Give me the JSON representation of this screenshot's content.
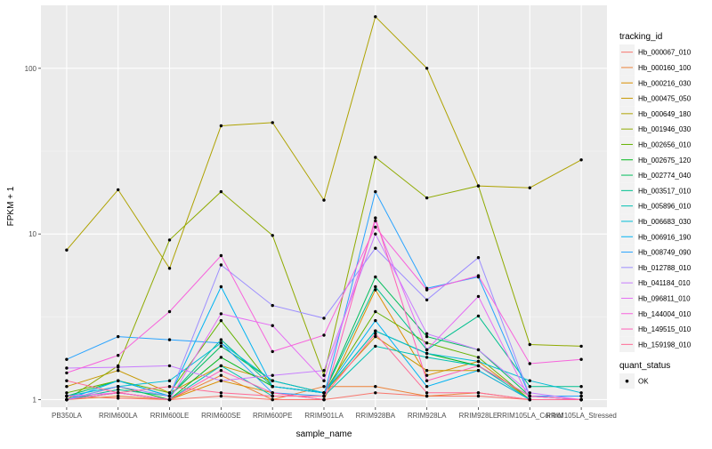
{
  "chart_data": {
    "type": "line",
    "xlabel": "sample_name",
    "ylabel": "FPKM + 1",
    "y_scale": "log10",
    "ylim": [
      0.9,
      240
    ],
    "grid": true,
    "legend_position": "right",
    "x_categories": [
      "PB350LA",
      "RRIM600LA",
      "RRIM600LE",
      "RRIM600SE",
      "RRIM600PE",
      "RRIM901LA",
      "RRIM928BA",
      "RRIM928LA",
      "RRIM928LE",
      "RRIM105LA_Control",
      "RRIM105LA_Stressed"
    ],
    "y_ticks": [
      {
        "value": 1,
        "label": "1"
      },
      {
        "value": 10,
        "label": "10"
      },
      {
        "value": 100,
        "label": "100"
      }
    ],
    "series": [
      {
        "name": "Hb_000067_010",
        "color": "#F8766D",
        "values": [
          1.05,
          1.02,
          1.0,
          1.05,
          1.0,
          1.0,
          1.1,
          1.05,
          1.05,
          1.0,
          1.0
        ]
      },
      {
        "name": "Hb_000160_100",
        "color": "#EC8239",
        "values": [
          1.0,
          1.05,
          1.0,
          1.4,
          1.0,
          1.2,
          1.2,
          1.05,
          1.1,
          1.0,
          1.0
        ]
      },
      {
        "name": "Hb_000216_030",
        "color": "#DB8E00",
        "values": [
          1.0,
          1.1,
          1.0,
          1.3,
          1.1,
          1.0,
          4.6,
          1.4,
          1.7,
          1.0,
          1.0
        ]
      },
      {
        "name": "Hb_000475_050",
        "color": "#C79800",
        "values": [
          1.2,
          1.5,
          1.1,
          1.6,
          1.3,
          1.1,
          2.4,
          1.5,
          1.5,
          1.0,
          1.0
        ]
      },
      {
        "name": "Hb_000649_180",
        "color": "#AEA200",
        "values": [
          8.0,
          18.5,
          6.2,
          45.0,
          47.0,
          16.0,
          205.0,
          100.0,
          19.5,
          19.0,
          28.0
        ]
      },
      {
        "name": "Hb_001946_030",
        "color": "#8FAA00",
        "values": [
          1.0,
          1.6,
          9.2,
          18.0,
          9.8,
          1.4,
          29.0,
          16.5,
          19.5,
          2.15,
          2.1
        ]
      },
      {
        "name": "Hb_002656_010",
        "color": "#64B200",
        "values": [
          1.1,
          1.3,
          1.1,
          3.0,
          1.2,
          1.1,
          3.4,
          2.2,
          1.8,
          1.0,
          1.0
        ]
      },
      {
        "name": "Hb_002675_120",
        "color": "#00B81B",
        "values": [
          1.0,
          1.2,
          1.0,
          1.8,
          1.2,
          1.1,
          2.6,
          1.9,
          1.6,
          1.05,
          1.0
        ]
      },
      {
        "name": "Hb_002774_040",
        "color": "#00BD5C",
        "values": [
          1.05,
          1.3,
          1.05,
          2.1,
          1.3,
          1.1,
          5.5,
          2.4,
          2.0,
          1.05,
          1.05
        ]
      },
      {
        "name": "Hb_003517_010",
        "color": "#00C08E",
        "values": [
          1.0,
          1.15,
          1.05,
          2.3,
          1.2,
          1.1,
          4.8,
          2.0,
          3.2,
          1.2,
          1.2
        ]
      },
      {
        "name": "Hb_005896_010",
        "color": "#00C1B2",
        "values": [
          1.0,
          1.1,
          1.0,
          1.6,
          1.05,
          1.05,
          2.1,
          1.8,
          1.6,
          1.0,
          1.0
        ]
      },
      {
        "name": "Hb_006683_030",
        "color": "#00BCD6",
        "values": [
          1.05,
          1.2,
          1.3,
          2.2,
          1.3,
          1.1,
          2.6,
          1.9,
          1.7,
          1.3,
          1.1
        ]
      },
      {
        "name": "Hb_006916_190",
        "color": "#00B3F2",
        "values": [
          1.0,
          1.3,
          1.05,
          4.8,
          1.2,
          1.1,
          3.0,
          1.2,
          1.5,
          1.0,
          1.0
        ]
      },
      {
        "name": "Hb_008749_090",
        "color": "#29A3FF",
        "values": [
          1.75,
          2.4,
          2.3,
          2.2,
          1.1,
          1.05,
          18.0,
          4.7,
          5.5,
          1.05,
          1.05
        ]
      },
      {
        "name": "Hb_012788_010",
        "color": "#9C8DFF",
        "values": [
          1.0,
          1.2,
          1.05,
          6.5,
          3.7,
          3.1,
          8.2,
          4.0,
          7.2,
          1.05,
          1.0
        ]
      },
      {
        "name": "Hb_041184_010",
        "color": "#C77CFF",
        "values": [
          1.55,
          1.57,
          1.6,
          1.3,
          1.4,
          1.5,
          10.0,
          2.5,
          2.0,
          1.1,
          1.0
        ]
      },
      {
        "name": "Hb_096811_010",
        "color": "#E56EF4",
        "values": [
          1.05,
          1.1,
          1.0,
          3.3,
          2.8,
          1.3,
          12.0,
          2.0,
          4.2,
          1.0,
          1.0
        ]
      },
      {
        "name": "Hb_144004_010",
        "color": "#F763DC",
        "values": [
          1.45,
          1.85,
          3.4,
          7.4,
          1.95,
          2.45,
          11.0,
          4.6,
          5.6,
          1.65,
          1.75
        ]
      },
      {
        "name": "Hb_149515_010",
        "color": "#FF5FB8",
        "values": [
          1.0,
          1.1,
          1.0,
          1.5,
          1.1,
          1.0,
          12.5,
          1.3,
          1.6,
          1.05,
          1.0
        ]
      },
      {
        "name": "Hb_159198_010",
        "color": "#FF6A95",
        "values": [
          1.3,
          1.1,
          1.2,
          1.1,
          1.05,
          1.05,
          2.5,
          1.1,
          1.1,
          1.0,
          1.0
        ]
      }
    ],
    "quant_status_legend": {
      "title": "quant_status",
      "entries": [
        "OK"
      ]
    },
    "legend_title": "tracking_id"
  }
}
